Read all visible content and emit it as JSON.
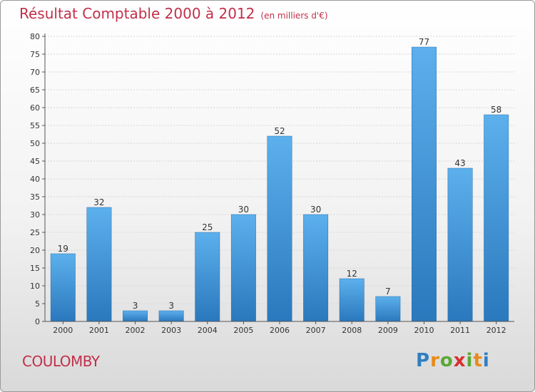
{
  "title": "Résultat Comptable 2000 à 2012",
  "subtitle": "(en milliers d'€)",
  "commune": "COULOMBY",
  "logo": {
    "letters": [
      "P",
      "r",
      "o",
      "x",
      "i",
      "t",
      "i"
    ],
    "colors": [
      "#2f7fc2",
      "#e88a1a",
      "#5aa832",
      "#d93030",
      "#5aa832",
      "#e88a1a",
      "#2f7fc2"
    ]
  },
  "chart_data": {
    "type": "bar",
    "categories": [
      "2000",
      "2001",
      "2002",
      "2003",
      "2004",
      "2005",
      "2006",
      "2007",
      "2008",
      "2009",
      "2010",
      "2011",
      "2012"
    ],
    "values": [
      19,
      32,
      3,
      3,
      25,
      30,
      52,
      30,
      12,
      7,
      77,
      43,
      58
    ],
    "ylim": [
      0,
      80
    ],
    "ytick_step": 5,
    "grid": true,
    "bar_color": "#3f97d8"
  }
}
